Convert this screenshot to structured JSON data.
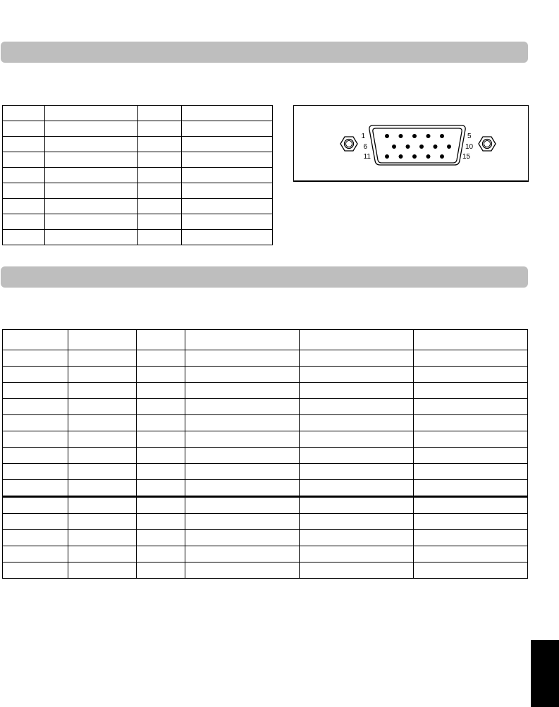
{
  "connector": {
    "icon": "vga-db15-connector-icon",
    "pin_labels": {
      "top_left": "1",
      "top_right": "5",
      "mid_left": "6",
      "mid_right": "10",
      "bottom_left": "11",
      "bottom_right": "15"
    }
  },
  "pin_table": {
    "columns": 4,
    "rows": 9
  },
  "timing_table": {
    "columns": 6,
    "rows": 15
  },
  "colors": {
    "section_bar": "#bebebe",
    "tab": "#000000"
  }
}
